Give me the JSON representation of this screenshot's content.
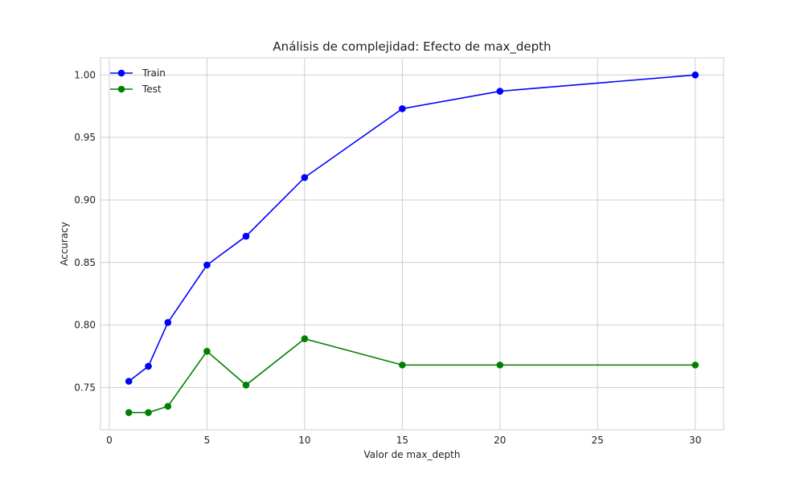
{
  "chart_data": {
    "type": "line",
    "title": "Análisis de complejidad: Efecto de max_depth",
    "xlabel": "Valor de max_depth",
    "ylabel": "Accuracy",
    "xlim": [
      -0.45,
      31.45
    ],
    "ylim": [
      0.7162,
      1.0137
    ],
    "xticks": [
      0,
      5,
      10,
      15,
      20,
      25,
      30
    ],
    "yticks": [
      0.75,
      0.8,
      0.85,
      0.9,
      0.95,
      1.0
    ],
    "xtick_labels": [
      "0",
      "5",
      "10",
      "15",
      "20",
      "25",
      "30"
    ],
    "ytick_labels": [
      "0.75",
      "0.80",
      "0.85",
      "0.90",
      "0.95",
      "1.00"
    ],
    "grid": true,
    "legend": "top-left",
    "x": [
      1,
      2,
      3,
      5,
      7,
      10,
      15,
      20,
      30
    ],
    "series": [
      {
        "name": "Train",
        "color": "#0000ff",
        "marker": "circle",
        "values": [
          0.755,
          0.767,
          0.802,
          0.848,
          0.871,
          0.918,
          0.973,
          0.987,
          1.0
        ]
      },
      {
        "name": "Test",
        "color": "#008000",
        "marker": "circle",
        "values": [
          0.73,
          0.73,
          0.735,
          0.779,
          0.752,
          0.789,
          0.768,
          0.768,
          0.768
        ]
      }
    ]
  }
}
